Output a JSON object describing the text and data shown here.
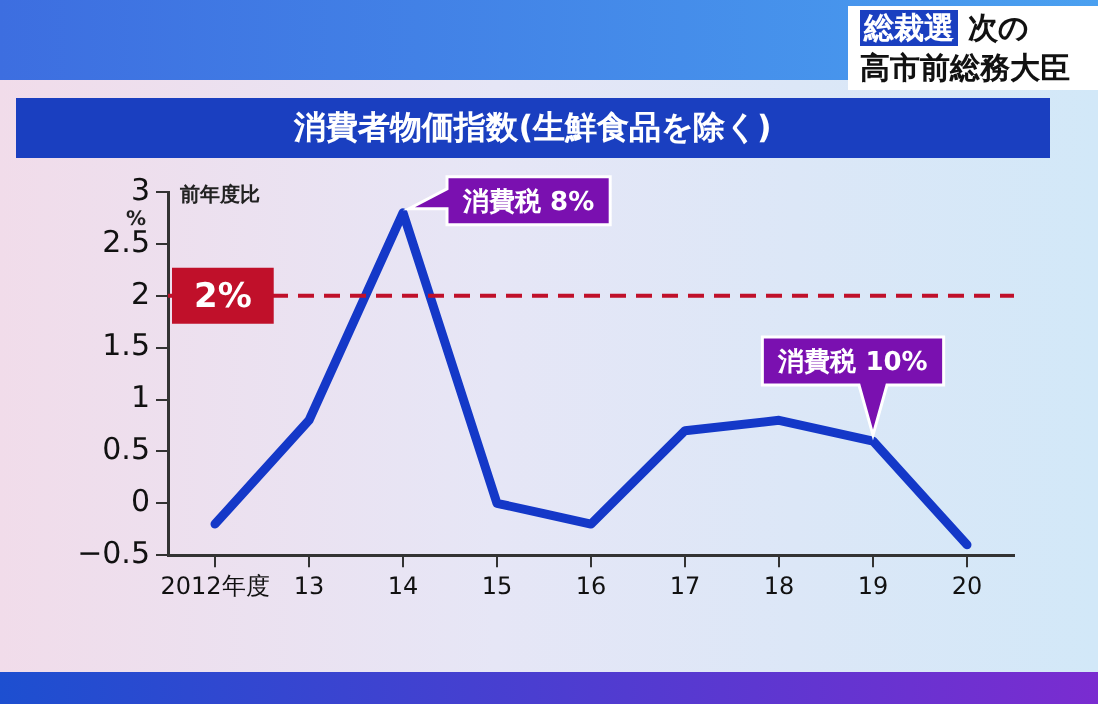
{
  "chart_data": {
    "type": "line",
    "title": "消費者物価指数(生鮮食品を除く)",
    "ylabel": "前年度比",
    "categories": [
      "2012年度",
      "13",
      "14",
      "15",
      "16",
      "17",
      "18",
      "19",
      "20"
    ],
    "series": [
      {
        "color": "#1438c8",
        "values": [
          -0.2,
          0.8,
          2.8,
          0.0,
          -0.2,
          0.7,
          0.8,
          0.6,
          -0.4
        ]
      }
    ],
    "ylim": [
      -0.5,
      3
    ],
    "yticks": [
      -0.5,
      0,
      0.5,
      1,
      1.5,
      2,
      2.5,
      3
    ],
    "ref_lines": [
      {
        "axis": "y",
        "value": 2,
        "label": "2%",
        "color": "#c0102a",
        "line_style": "dashed"
      }
    ],
    "annotations": [
      {
        "text": "消費税 8%",
        "x": "14",
        "y": 2.8
      },
      {
        "text": "消費税 10%",
        "x": "19",
        "y": 0.6
      },
      "%",
      "総裁選",
      "次の",
      "高市前総務大臣"
    ],
    "grid": false,
    "legend": false,
    "marker": "none",
    "line_style": "solid"
  }
}
